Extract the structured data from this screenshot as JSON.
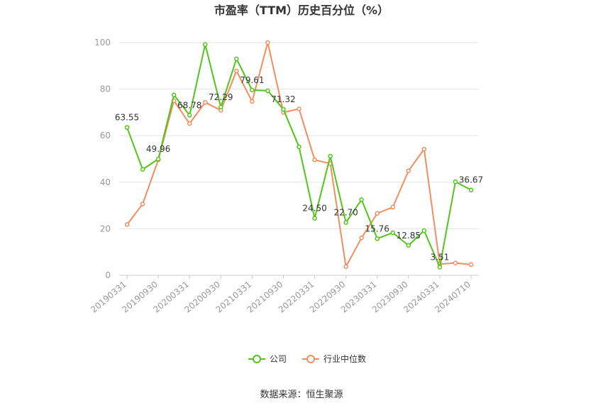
{
  "chart_data": {
    "type": "line",
    "title": "市盈率（TTM）历史百分位（%）",
    "source": "数据来源：恒生聚源",
    "xlabel": "",
    "ylabel": "",
    "ylim": [
      0,
      100
    ],
    "yticks": [
      "0",
      "20",
      "40",
      "60",
      "80",
      "100"
    ],
    "x": [
      "20190331",
      "20190630",
      "20190930",
      "20191231",
      "20200331",
      "20200630",
      "20200930",
      "20201231",
      "20210331",
      "20210630",
      "20210930",
      "20211231",
      "20220331",
      "20220630",
      "20220930",
      "20221231",
      "20230331",
      "20230630",
      "20230930",
      "20231231",
      "20240331",
      "20240630",
      "20240710"
    ],
    "xtick_labels": [
      "20190331",
      "20190930",
      "20200331",
      "20200930",
      "20210331",
      "20210930",
      "20220331",
      "20220930",
      "20230331",
      "20230930",
      "20240331",
      "20240710"
    ],
    "grid": true,
    "legend_position": "bottom",
    "series": [
      {
        "name": "公司",
        "color": "#52c41a",
        "values": [
          63.55,
          45.5,
          49.96,
          77.5,
          68.78,
          99.2,
          72.29,
          93.0,
          79.61,
          79.3,
          71.32,
          55.2,
          24.5,
          51.2,
          22.7,
          32.5,
          15.76,
          18.3,
          12.85,
          19.2,
          3.51,
          40.2,
          36.67
        ],
        "labels": {
          "0": "63.55",
          "2": "49.96",
          "4": "68.78",
          "6": "72.29",
          "8": "79.61",
          "10": "71.32",
          "12": "24.50",
          "14": "22.70",
          "16": "15.76",
          "18": "12.85",
          "20": "3.51",
          "22": "36.67"
        }
      },
      {
        "name": "行业中位数",
        "color": "#f28e5e",
        "values": [
          21.8,
          30.6,
          49.6,
          75.0,
          65.2,
          74.3,
          70.9,
          87.8,
          74.7,
          100.0,
          70.0,
          71.5,
          49.6,
          48.0,
          3.7,
          16.1,
          26.6,
          29.3,
          44.9,
          54.2,
          4.8,
          5.3,
          4.6
        ]
      }
    ]
  }
}
